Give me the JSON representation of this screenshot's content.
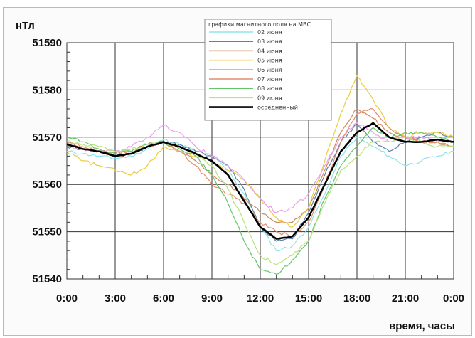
{
  "chart_data": {
    "type": "line",
    "title": "",
    "ylabel": "нТл",
    "xlabel": "время, часы",
    "ylim": [
      51540,
      51590
    ],
    "xlim": [
      0,
      24
    ],
    "yticks": [
      51540,
      51550,
      51560,
      51570,
      51580,
      51590
    ],
    "xticks": [
      0,
      3,
      6,
      9,
      12,
      15,
      18,
      21,
      24
    ],
    "xtick_labels": [
      "0:00",
      "3:00",
      "6:00",
      "9:00",
      "12:00",
      "15:00",
      "18:00",
      "21:00",
      "0:00"
    ],
    "grid": true,
    "legend": {
      "title": "графики магнитного поля на МВС",
      "position": "top-center"
    },
    "series": [
      {
        "name": "02 июня",
        "color": "#8ee3ef",
        "width": 1.2,
        "x": [
          0,
          1,
          2,
          3,
          4,
          5,
          6,
          7,
          8,
          9,
          10,
          11,
          12,
          13,
          14,
          15,
          16,
          17,
          18,
          19,
          20,
          21,
          22,
          23,
          24
        ],
        "y": [
          51567,
          51566.5,
          51566,
          51565.5,
          51566,
          51567.5,
          51569.5,
          51568.5,
          51567,
          51566,
          51563,
          51558,
          51551,
          51546,
          51547,
          51551,
          51558,
          51566,
          51570,
          51568,
          51566,
          51564,
          51565,
          51566,
          51567
        ]
      },
      {
        "name": "03 июня",
        "color": "#5f7fa8",
        "width": 1.2,
        "x": [
          0,
          1,
          2,
          3,
          4,
          5,
          6,
          7,
          8,
          9,
          10,
          11,
          12,
          13,
          14,
          15,
          16,
          17,
          18,
          19,
          20,
          21,
          22,
          23,
          24
        ],
        "y": [
          51568,
          51567.5,
          51567,
          51566,
          51566.5,
          51568,
          51569,
          51568.5,
          51567,
          51566,
          51564,
          51559,
          51551,
          51548,
          51548.5,
          51554,
          51562,
          51569,
          51573,
          51569,
          51567,
          51569,
          51570,
          51571,
          51570
        ]
      },
      {
        "name": "04 июня",
        "color": "#c98b5b",
        "width": 1.2,
        "x": [
          0,
          1,
          2,
          3,
          4,
          5,
          6,
          7,
          8,
          9,
          10,
          11,
          12,
          13,
          14,
          15,
          16,
          17,
          18,
          19,
          20,
          21,
          22,
          23,
          24
        ],
        "y": [
          51569,
          51568,
          51567,
          51566.5,
          51567,
          51568.5,
          51569,
          51567,
          51565,
          51562,
          51560,
          51557,
          51554,
          51552,
          51552,
          51555,
          51563,
          51571,
          51576,
          51574,
          51571,
          51570,
          51569,
          51569,
          51568
        ]
      },
      {
        "name": "05 июня",
        "color": "#eccc3b",
        "width": 1.2,
        "x": [
          0,
          1,
          2,
          3,
          4,
          5,
          6,
          7,
          8,
          9,
          10,
          11,
          12,
          13,
          14,
          15,
          16,
          17,
          18,
          19,
          20,
          21,
          22,
          23,
          24
        ],
        "y": [
          51567,
          51565,
          51564,
          51563,
          51562,
          51564,
          51568,
          51567,
          51566,
          51565,
          51563,
          51561,
          51557,
          51553,
          51551,
          51555,
          51565,
          51575,
          51583,
          51578,
          51572,
          51570,
          51571,
          51571,
          51570
        ]
      },
      {
        "name": "06 июня",
        "color": "#e9a0e8",
        "width": 1.2,
        "x": [
          0,
          1,
          2,
          3,
          4,
          5,
          6,
          7,
          8,
          9,
          10,
          11,
          12,
          13,
          14,
          15,
          16,
          17,
          18,
          19,
          20,
          21,
          22,
          23,
          24
        ],
        "y": [
          51568,
          51567.5,
          51567,
          51567,
          51568,
          51570,
          51572.5,
          51571,
          51568,
          51566,
          51564,
          51561,
          51557,
          51554,
          51555,
          51558,
          51564,
          51570,
          51573,
          51571,
          51569,
          51570,
          51570,
          51569,
          51569
        ]
      },
      {
        "name": "07 июня",
        "color": "#e38c6f",
        "width": 1.2,
        "x": [
          0,
          1,
          2,
          3,
          4,
          5,
          6,
          7,
          8,
          9,
          10,
          11,
          12,
          13,
          14,
          15,
          16,
          17,
          18,
          19,
          20,
          21,
          22,
          23,
          24
        ],
        "y": [
          51569,
          51568,
          51567,
          51566,
          51566.5,
          51568,
          51569,
          51567,
          51564,
          51560,
          51558,
          51556,
          51552,
          51550,
          51549,
          51552,
          51560,
          51569,
          51575,
          51576,
          51572,
          51570,
          51569,
          51569,
          51568
        ]
      },
      {
        "name": "08 июня",
        "color": "#62c46b",
        "width": 1.2,
        "x": [
          0,
          1,
          2,
          3,
          4,
          5,
          6,
          7,
          8,
          9,
          10,
          11,
          12,
          13,
          14,
          15,
          16,
          17,
          18,
          19,
          20,
          21,
          22,
          23,
          24
        ],
        "y": [
          51570,
          51569,
          51567.5,
          51566.5,
          51567,
          51568.5,
          51569,
          51567.5,
          51566,
          51562,
          51556,
          51548,
          51542,
          51541,
          51544,
          51548,
          51557,
          51564,
          51568,
          51572,
          51570,
          51571,
          51571,
          51570,
          51569
        ]
      },
      {
        "name": "09 июня",
        "color": "#b7e37c",
        "width": 1.2,
        "x": [
          0,
          1,
          2,
          3,
          4,
          5,
          6,
          7,
          8,
          9,
          10,
          11,
          12,
          13,
          14,
          15,
          16,
          17,
          18,
          19,
          20,
          21,
          22,
          23,
          24
        ],
        "y": [
          51569,
          51568.5,
          51568,
          51567,
          51567.5,
          51568.5,
          51569,
          51568,
          51566.5,
          51564,
          51559,
          51552,
          51545,
          51543,
          51545,
          51548,
          51556,
          51563,
          51566,
          51569,
          51569,
          51570,
          51569,
          51568,
          51568
        ]
      },
      {
        "name": "осредненный",
        "color": "#000000",
        "width": 2.6,
        "x": [
          0,
          1,
          2,
          3,
          4,
          5,
          6,
          7,
          8,
          9,
          10,
          11,
          12,
          13,
          14,
          15,
          16,
          17,
          18,
          19,
          20,
          21,
          22,
          23,
          24
        ],
        "y": [
          51568.5,
          51567.5,
          51567,
          51566,
          51566.5,
          51568,
          51569,
          51568,
          51566.5,
          51565,
          51562,
          51556.5,
          51551,
          51548.5,
          51549,
          51553,
          51560,
          51567,
          51571,
          51573,
          51570,
          51569,
          51569,
          51569.5,
          51569
        ]
      }
    ]
  }
}
